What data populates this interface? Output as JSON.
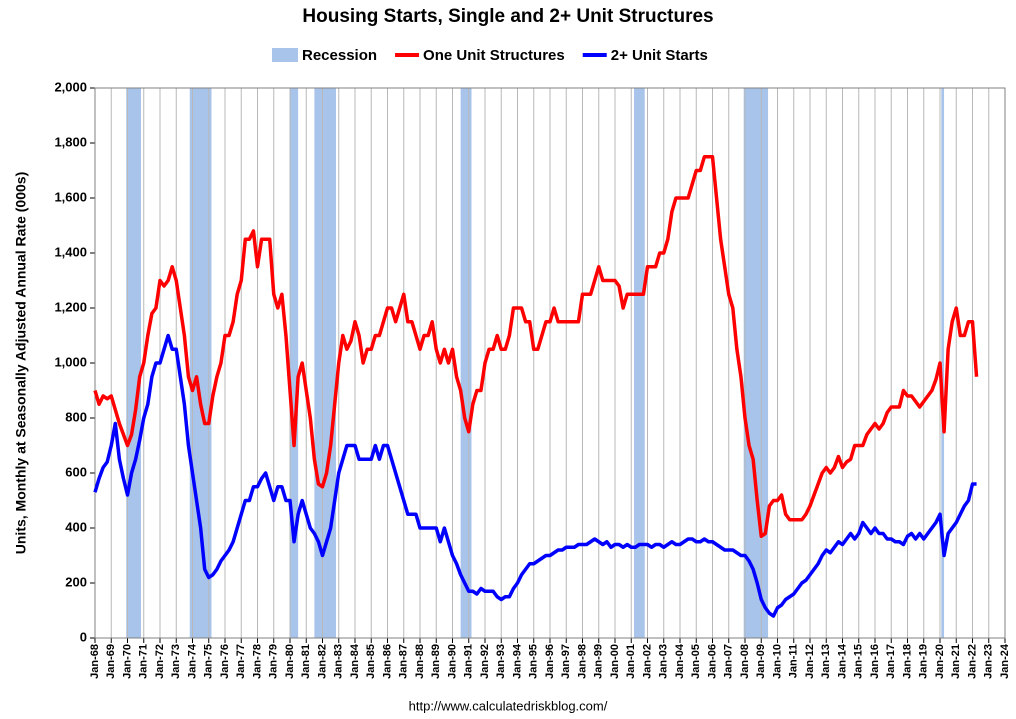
{
  "chart_data": {
    "type": "line",
    "title": "Housing Starts, Single and 2+ Unit Structures",
    "y_label": "Units, Monthly at Seasonally Adjusted Annual Rate (000s)",
    "source": "http://www.calculatedriskblog.com/",
    "recession_label": "Recession",
    "recession_color": "#a9c4eb",
    "recessions": [
      [
        1969.92,
        1970.83
      ],
      [
        1973.83,
        1975.17
      ],
      [
        1980.0,
        1980.5
      ],
      [
        1981.5,
        1982.83
      ],
      [
        1990.5,
        1991.17
      ],
      [
        2001.17,
        2001.83
      ],
      [
        2007.92,
        2009.42
      ],
      [
        2020.08,
        2020.25
      ]
    ],
    "xlim": [
      1968,
      2024
    ],
    "ylim": [
      0,
      2000
    ],
    "yticks": [
      0,
      200,
      400,
      600,
      800,
      {
        "value": 1000,
        "label": "1,000"
      },
      {
        "value": 1200,
        "label": "1,200"
      },
      {
        "value": 1400,
        "label": "1,400"
      },
      {
        "value": 1600,
        "label": "1,600"
      },
      {
        "value": 1800,
        "label": "1,800"
      },
      {
        "value": 2000,
        "label": "2,000"
      }
    ],
    "xticks": [
      {
        "value": 1968,
        "label": "Jan-68"
      },
      {
        "value": 1969,
        "label": "Jan-69"
      },
      {
        "value": 1970,
        "label": "Jan-70"
      },
      {
        "value": 1971,
        "label": "Jan-71"
      },
      {
        "value": 1972,
        "label": "Jan-72"
      },
      {
        "value": 1973,
        "label": "Jan-73"
      },
      {
        "value": 1974,
        "label": "Jan-74"
      },
      {
        "value": 1975,
        "label": "Jan-75"
      },
      {
        "value": 1976,
        "label": "Jan-76"
      },
      {
        "value": 1977,
        "label": "Jan-77"
      },
      {
        "value": 1978,
        "label": "Jan-78"
      },
      {
        "value": 1979,
        "label": "Jan-79"
      },
      {
        "value": 1980,
        "label": "Jan-80"
      },
      {
        "value": 1981,
        "label": "Jan-81"
      },
      {
        "value": 1982,
        "label": "Jan-82"
      },
      {
        "value": 1983,
        "label": "Jan-83"
      },
      {
        "value": 1984,
        "label": "Jan-84"
      },
      {
        "value": 1985,
        "label": "Jan-85"
      },
      {
        "value": 1986,
        "label": "Jan-86"
      },
      {
        "value": 1987,
        "label": "Jan-87"
      },
      {
        "value": 1988,
        "label": "Jan-88"
      },
      {
        "value": 1989,
        "label": "Jan-89"
      },
      {
        "value": 1990,
        "label": "Jan-90"
      },
      {
        "value": 1991,
        "label": "Jan-91"
      },
      {
        "value": 1992,
        "label": "Jan-92"
      },
      {
        "value": 1993,
        "label": "Jan-93"
      },
      {
        "value": 1994,
        "label": "Jan-94"
      },
      {
        "value": 1995,
        "label": "Jan-95"
      },
      {
        "value": 1996,
        "label": "Jan-96"
      },
      {
        "value": 1997,
        "label": "Jan-97"
      },
      {
        "value": 1998,
        "label": "Jan-98"
      },
      {
        "value": 1999,
        "label": "Jan-99"
      },
      {
        "value": 2000,
        "label": "Jan-00"
      },
      {
        "value": 2001,
        "label": "Jan-01"
      },
      {
        "value": 2002,
        "label": "Jan-02"
      },
      {
        "value": 2003,
        "label": "Jan-03"
      },
      {
        "value": 2004,
        "label": "Jan-04"
      },
      {
        "value": 2005,
        "label": "Jan-05"
      },
      {
        "value": 2006,
        "label": "Jan-06"
      },
      {
        "value": 2007,
        "label": "Jan-07"
      },
      {
        "value": 2008,
        "label": "Jan-08"
      },
      {
        "value": 2009,
        "label": "Jan-09"
      },
      {
        "value": 2010,
        "label": "Jan-10"
      },
      {
        "value": 2011,
        "label": "Jan-11"
      },
      {
        "value": 2012,
        "label": "Jan-12"
      },
      {
        "value": 2013,
        "label": "Jan-13"
      },
      {
        "value": 2014,
        "label": "Jan-14"
      },
      {
        "value": 2015,
        "label": "Jan-15"
      },
      {
        "value": 2016,
        "label": "Jan-16"
      },
      {
        "value": 2017,
        "label": "Jan-17"
      },
      {
        "value": 2018,
        "label": "Jan-18"
      },
      {
        "value": 2019,
        "label": "Jan-19"
      },
      {
        "value": 2020,
        "label": "Jan-20"
      },
      {
        "value": 2021,
        "label": "Jan-21"
      },
      {
        "value": 2022,
        "label": "Jan-22"
      },
      {
        "value": 2023,
        "label": "Jan-23"
      },
      {
        "value": 2024,
        "label": "Jan-24"
      }
    ],
    "grid": true,
    "x": [
      1968,
      1968.25,
      1968.5,
      1968.75,
      1969,
      1969.25,
      1969.5,
      1969.75,
      1970,
      1970.25,
      1970.5,
      1970.75,
      1971,
      1971.25,
      1971.5,
      1971.75,
      1972,
      1972.25,
      1972.5,
      1972.75,
      1973,
      1973.25,
      1973.5,
      1973.75,
      1974,
      1974.25,
      1974.5,
      1974.75,
      1975,
      1975.25,
      1975.5,
      1975.75,
      1976,
      1976.25,
      1976.5,
      1976.75,
      1977,
      1977.25,
      1977.5,
      1977.75,
      1978,
      1978.25,
      1978.5,
      1978.75,
      1979,
      1979.25,
      1979.5,
      1979.75,
      1980,
      1980.25,
      1980.5,
      1980.75,
      1981,
      1981.25,
      1981.5,
      1981.75,
      1982,
      1982.25,
      1982.5,
      1982.75,
      1983,
      1983.25,
      1983.5,
      1983.75,
      1984,
      1984.25,
      1984.5,
      1984.75,
      1985,
      1985.25,
      1985.5,
      1985.75,
      1986,
      1986.25,
      1986.5,
      1986.75,
      1987,
      1987.25,
      1987.5,
      1987.75,
      1988,
      1988.25,
      1988.5,
      1988.75,
      1989,
      1989.25,
      1989.5,
      1989.75,
      1990,
      1990.25,
      1990.5,
      1990.75,
      1991,
      1991.25,
      1991.5,
      1991.75,
      1992,
      1992.25,
      1992.5,
      1992.75,
      1993,
      1993.25,
      1993.5,
      1993.75,
      1994,
      1994.25,
      1994.5,
      1994.75,
      1995,
      1995.25,
      1995.5,
      1995.75,
      1996,
      1996.25,
      1996.5,
      1996.75,
      1997,
      1997.25,
      1997.5,
      1997.75,
      1998,
      1998.25,
      1998.5,
      1998.75,
      1999,
      1999.25,
      1999.5,
      1999.75,
      2000,
      2000.25,
      2000.5,
      2000.75,
      2001,
      2001.25,
      2001.5,
      2001.75,
      2002,
      2002.25,
      2002.5,
      2002.75,
      2003,
      2003.25,
      2003.5,
      2003.75,
      2004,
      2004.25,
      2004.5,
      2004.75,
      2005,
      2005.25,
      2005.5,
      2005.75,
      2006,
      2006.25,
      2006.5,
      2006.75,
      2007,
      2007.25,
      2007.5,
      2007.75,
      2008,
      2008.25,
      2008.5,
      2008.75,
      2009,
      2009.25,
      2009.5,
      2009.75,
      2010,
      2010.25,
      2010.5,
      2010.75,
      2011,
      2011.25,
      2011.5,
      2011.75,
      2012,
      2012.25,
      2012.5,
      2012.75,
      2013,
      2013.25,
      2013.5,
      2013.75,
      2014,
      2014.25,
      2014.5,
      2014.75,
      2015,
      2015.25,
      2015.5,
      2015.75,
      2016,
      2016.25,
      2016.5,
      2016.75,
      2017,
      2017.25,
      2017.5,
      2017.75,
      2018,
      2018.25,
      2018.5,
      2018.75,
      2019,
      2019.25,
      2019.5,
      2019.75,
      2020,
      2020.25,
      2020.5,
      2020.75,
      2021,
      2021.25,
      2021.5,
      2021.75,
      2022,
      2022.25
    ],
    "series": [
      {
        "name": "One Unit Structures",
        "color": "#ff0000",
        "values": [
          900,
          850,
          880,
          870,
          880,
          830,
          780,
          740,
          700,
          740,
          830,
          950,
          1000,
          1100,
          1180,
          1200,
          1300,
          1280,
          1300,
          1350,
          1300,
          1200,
          1100,
          950,
          900,
          950,
          850,
          780,
          780,
          880,
          950,
          1000,
          1100,
          1100,
          1150,
          1250,
          1300,
          1450,
          1450,
          1480,
          1350,
          1450,
          1450,
          1450,
          1250,
          1200,
          1250,
          1100,
          900,
          700,
          950,
          1000,
          900,
          800,
          650,
          560,
          550,
          600,
          700,
          850,
          1000,
          1100,
          1050,
          1080,
          1150,
          1100,
          1000,
          1050,
          1050,
          1100,
          1100,
          1150,
          1200,
          1200,
          1150,
          1200,
          1250,
          1150,
          1150,
          1100,
          1050,
          1100,
          1100,
          1150,
          1050,
          1000,
          1050,
          1000,
          1050,
          950,
          900,
          800,
          750,
          850,
          900,
          900,
          1000,
          1050,
          1050,
          1100,
          1050,
          1050,
          1100,
          1200,
          1200,
          1200,
          1150,
          1150,
          1050,
          1050,
          1100,
          1150,
          1150,
          1200,
          1150,
          1150,
          1150,
          1150,
          1150,
          1150,
          1250,
          1250,
          1250,
          1300,
          1350,
          1300,
          1300,
          1300,
          1300,
          1280,
          1200,
          1250,
          1250,
          1250,
          1250,
          1250,
          1350,
          1350,
          1350,
          1400,
          1400,
          1450,
          1550,
          1600,
          1600,
          1600,
          1600,
          1650,
          1700,
          1700,
          1750,
          1750,
          1750,
          1600,
          1450,
          1350,
          1250,
          1200,
          1050,
          950,
          800,
          700,
          650,
          500,
          370,
          380,
          480,
          500,
          500,
          520,
          450,
          430,
          430,
          430,
          430,
          450,
          480,
          520,
          560,
          600,
          620,
          600,
          620,
          660,
          620,
          640,
          650,
          700,
          700,
          700,
          740,
          760,
          780,
          760,
          780,
          820,
          840,
          840,
          840,
          900,
          880,
          880,
          860,
          840,
          860,
          880,
          900,
          940,
          1000,
          750,
          1050,
          1150,
          1200,
          1100,
          1100,
          1150,
          1150,
          950
        ]
      },
      {
        "name": "2+ Unit Starts",
        "color": "#0000ff",
        "values": [
          530,
          580,
          620,
          640,
          700,
          780,
          650,
          580,
          520,
          600,
          650,
          720,
          800,
          850,
          950,
          1000,
          1000,
          1050,
          1100,
          1050,
          1050,
          950,
          850,
          700,
          600,
          500,
          400,
          250,
          220,
          230,
          250,
          280,
          300,
          320,
          350,
          400,
          450,
          500,
          500,
          550,
          550,
          580,
          600,
          550,
          500,
          550,
          550,
          500,
          500,
          350,
          450,
          500,
          450,
          400,
          380,
          350,
          300,
          350,
          400,
          500,
          600,
          650,
          700,
          700,
          700,
          650,
          650,
          650,
          650,
          700,
          650,
          700,
          700,
          650,
          600,
          550,
          500,
          450,
          450,
          450,
          400,
          400,
          400,
          400,
          400,
          350,
          400,
          350,
          300,
          270,
          230,
          200,
          170,
          170,
          160,
          180,
          170,
          170,
          170,
          150,
          140,
          150,
          150,
          180,
          200,
          230,
          250,
          270,
          270,
          280,
          290,
          300,
          300,
          310,
          320,
          320,
          330,
          330,
          330,
          340,
          340,
          340,
          350,
          360,
          350,
          340,
          350,
          330,
          340,
          340,
          330,
          340,
          330,
          330,
          340,
          340,
          340,
          330,
          340,
          340,
          330,
          340,
          350,
          340,
          340,
          350,
          360,
          360,
          350,
          350,
          360,
          350,
          350,
          340,
          330,
          320,
          320,
          320,
          310,
          300,
          300,
          280,
          250,
          200,
          140,
          110,
          90,
          80,
          110,
          120,
          140,
          150,
          160,
          180,
          200,
          210,
          230,
          250,
          270,
          300,
          320,
          310,
          330,
          350,
          340,
          360,
          380,
          360,
          380,
          420,
          400,
          380,
          400,
          380,
          380,
          360,
          360,
          350,
          350,
          340,
          370,
          380,
          360,
          380,
          360,
          380,
          400,
          420,
          450,
          300,
          380,
          400,
          420,
          450,
          480,
          500,
          560,
          560
        ]
      }
    ]
  }
}
